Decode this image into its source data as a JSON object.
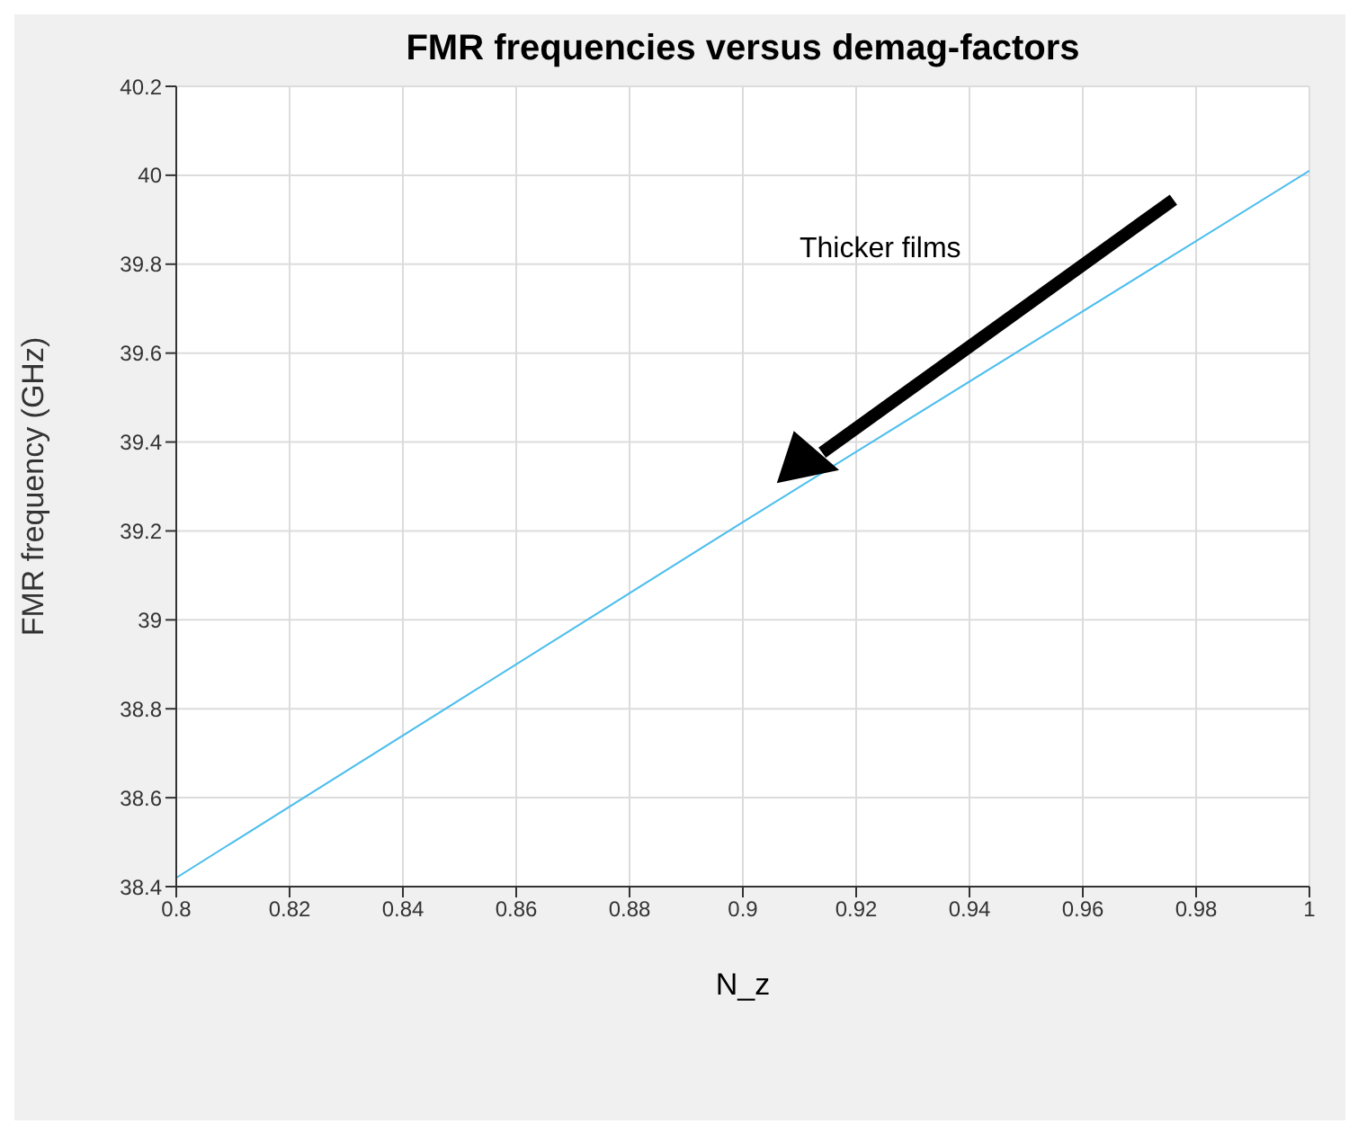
{
  "chart_data": {
    "type": "line",
    "title": "FMR frequencies versus demag-factors",
    "xlabel": "N_z",
    "ylabel": "FMR frequency (GHz)",
    "annotations": [
      "Thicker films"
    ],
    "series": [
      {
        "color": "#4dbeee",
        "x": [
          0.8,
          0.9,
          1
        ],
        "values": [
          38.42,
          39.22,
          40.01
        ]
      }
    ],
    "xlim": [
      0.8,
      1
    ],
    "xticks": [
      0.8,
      0.82,
      0.84,
      0.86,
      0.88,
      0.9,
      0.92,
      0.94,
      0.96,
      0.98,
      1
    ],
    "ylim": [
      38.4,
      40.2
    ],
    "yticks": [
      38.4,
      38.6,
      38.8,
      39,
      39.2,
      39.4,
      39.6,
      39.8,
      40,
      40.2
    ],
    "grid": true,
    "marker": "none",
    "line_style": "solid"
  }
}
